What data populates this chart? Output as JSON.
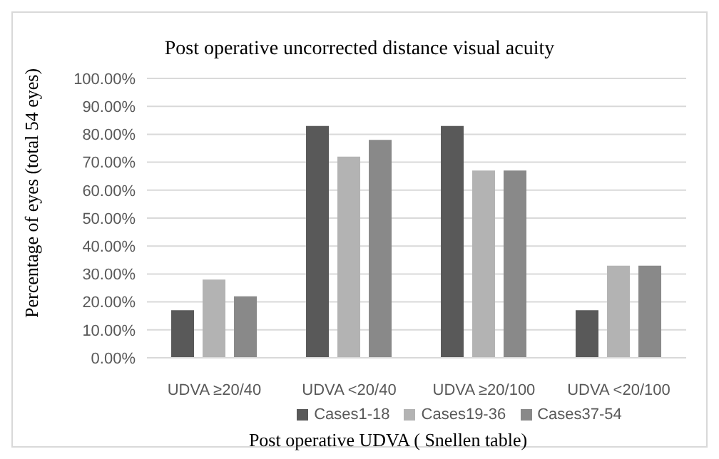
{
  "chart_data": {
    "type": "bar",
    "title": "Post operative uncorrected distance visual acuity",
    "xlabel": "Post operative UDVA ( Snellen table)",
    "ylabel": "Percentage of eyes (total 54 eyes)",
    "categories": [
      "UDVA ≥20/40",
      "UDVA <20/40",
      "UDVA ≥20/100",
      "UDVA <20/100"
    ],
    "series": [
      {
        "name": "Cases1-18",
        "color": "#595959",
        "values": [
          17,
          83,
          83,
          17
        ]
      },
      {
        "name": "Cases19-36",
        "color": "#b3b3b3",
        "values": [
          28,
          72,
          67,
          33
        ]
      },
      {
        "name": "Cases37-54",
        "color": "#898989",
        "values": [
          22,
          78,
          67,
          33
        ]
      }
    ],
    "ylim": [
      0,
      100
    ],
    "yticks": [
      {
        "value": 0,
        "label": "0.00%"
      },
      {
        "value": 10,
        "label": "10.00%"
      },
      {
        "value": 20,
        "label": "20.00%"
      },
      {
        "value": 30,
        "label": "30.00%"
      },
      {
        "value": 40,
        "label": "40.00%"
      },
      {
        "value": 50,
        "label": "50.00%"
      },
      {
        "value": 60,
        "label": "60.00%"
      },
      {
        "value": 70,
        "label": "70.00%"
      },
      {
        "value": 80,
        "label": "80.00%"
      },
      {
        "value": 90,
        "label": "90.00%"
      },
      {
        "value": 100,
        "label": "100.00%"
      }
    ],
    "grid": "y",
    "legend": "bottom"
  }
}
